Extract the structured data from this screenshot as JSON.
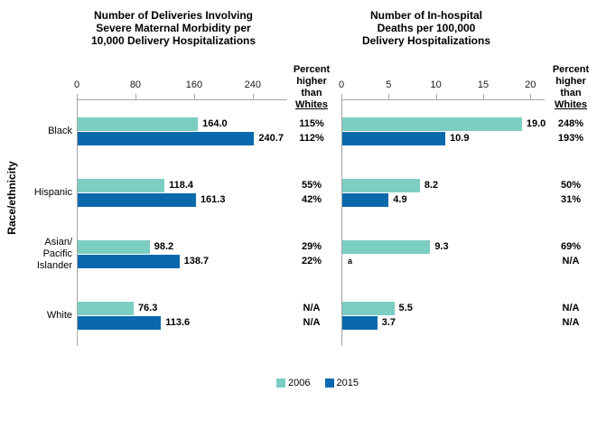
{
  "figure": {
    "ylabel": "Race/ethnicity",
    "percent_header": [
      "Percent",
      "higher",
      "than",
      "Whites"
    ],
    "legend": [
      {
        "label": "2006",
        "color": "#7CCDC2"
      },
      {
        "label": "2015",
        "color": "#0A69AD"
      }
    ],
    "category_label_lines": [
      [
        "Black"
      ],
      [
        "Hispanic"
      ],
      [
        "Asian/",
        "Pacific",
        "Islander"
      ],
      [
        "White"
      ]
    ]
  },
  "chart_data": [
    {
      "type": "bar",
      "orientation": "horizontal",
      "title": "Number of Deliveries Involving Severe Maternal Morbidity per 10,000 Delivery Hospitalizations",
      "title_lines": [
        "Number of Deliveries Involving",
        "Severe Maternal Morbidity per",
        "10,000 Delivery Hospitalizations"
      ],
      "categories": [
        "Black",
        "Hispanic",
        "Asian/Pacific Islander",
        "White"
      ],
      "series": [
        {
          "name": "2006",
          "color": "#7CCDC2",
          "values": [
            164.0,
            118.4,
            98.2,
            76.3
          ],
          "labels": [
            "164.0",
            "118.4",
            "98.2",
            "76.3"
          ]
        },
        {
          "name": "2015",
          "color": "#0A69AD",
          "values": [
            240.7,
            161.3,
            138.7,
            113.6
          ],
          "labels": [
            "240.7",
            "161.3",
            "138.7",
            "113.6"
          ]
        }
      ],
      "xticks": [
        0,
        80,
        160,
        240
      ],
      "xlim": [
        0,
        287
      ],
      "grid": false,
      "percent_higher_than_whites": [
        [
          "115%",
          "112%"
        ],
        [
          "55%",
          "42%"
        ],
        [
          "29%",
          "22%"
        ],
        [
          "N/A",
          "N/A"
        ]
      ]
    },
    {
      "type": "bar",
      "orientation": "horizontal",
      "title": "Number of In-hospital Deaths per 100,000 Delivery Hospitalizations",
      "title_lines": [
        "Number of In-hospital",
        "Deaths per 100,000",
        "Delivery Hospitalizations"
      ],
      "categories": [
        "Black",
        "Hispanic",
        "Asian/Pacific Islander",
        "White"
      ],
      "series": [
        {
          "name": "2006",
          "color": "#7CCDC2",
          "values": [
            19.0,
            8.2,
            9.3,
            5.5
          ],
          "labels": [
            "19.0",
            "8.2",
            "9.3",
            "5.5"
          ]
        },
        {
          "name": "2015",
          "color": "#0A69AD",
          "values": [
            10.9,
            4.9,
            null,
            3.7
          ],
          "labels": [
            "10.9",
            "4.9",
            "a",
            "3.7"
          ]
        }
      ],
      "footnote_marker": "a",
      "xticks": [
        0,
        5,
        10,
        15,
        20
      ],
      "xlim": [
        0,
        21.5
      ],
      "grid": false,
      "percent_higher_than_whites": [
        [
          "248%",
          "193%"
        ],
        [
          "50%",
          "31%"
        ],
        [
          "69%",
          "N/A"
        ],
        [
          "N/A",
          "N/A"
        ]
      ]
    }
  ]
}
